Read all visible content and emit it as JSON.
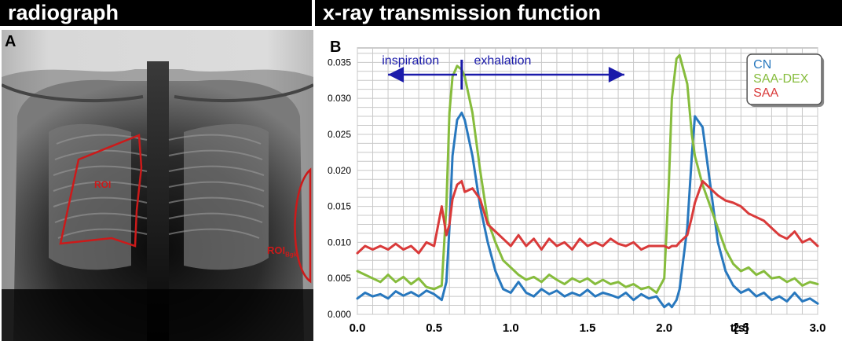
{
  "header": {
    "left_title": "radiograph",
    "right_title": "x-ray transmission function"
  },
  "panels": {
    "a_label": "A",
    "b_label": "B",
    "roi_label": "ROI",
    "roi_bgk_main": "ROI",
    "roi_bgk_sub": "Bgk"
  },
  "colors": {
    "CN": "#2878be",
    "SAA-DEX": "#86bc3c",
    "SAA": "#d93a3a",
    "annotation": "#1a1aaa",
    "roi": "#cc1a1a"
  },
  "annotations": {
    "inspiration": "inspiration",
    "exhalation": "exhalation"
  },
  "chart_data": {
    "type": "line",
    "xlabel": "t[s]",
    "ylabel": "",
    "xlim": [
      0,
      3.0
    ],
    "ylim": [
      0,
      0.037
    ],
    "xticks": [
      "0.0",
      "0.5",
      "1.0",
      "1.5",
      "2.0",
      "2.5",
      "3.0"
    ],
    "yticks": [
      "0.000",
      "0.005",
      "0.010",
      "0.015",
      "0.020",
      "0.025",
      "0.030",
      "0.035"
    ],
    "grid": true,
    "legend_position": "top-right",
    "x": [
      0.0,
      0.05,
      0.1,
      0.15,
      0.2,
      0.25,
      0.3,
      0.35,
      0.4,
      0.45,
      0.5,
      0.55,
      0.58,
      0.6,
      0.62,
      0.65,
      0.68,
      0.7,
      0.75,
      0.8,
      0.85,
      0.9,
      0.95,
      1.0,
      1.05,
      1.1,
      1.15,
      1.2,
      1.25,
      1.3,
      1.35,
      1.4,
      1.45,
      1.5,
      1.55,
      1.6,
      1.65,
      1.7,
      1.75,
      1.8,
      1.85,
      1.9,
      1.95,
      2.0,
      2.03,
      2.05,
      2.08,
      2.1,
      2.15,
      2.18,
      2.2,
      2.25,
      2.3,
      2.35,
      2.4,
      2.45,
      2.5,
      2.55,
      2.6,
      2.65,
      2.7,
      2.75,
      2.8,
      2.85,
      2.9,
      2.95,
      3.0
    ],
    "series": [
      {
        "name": "CN",
        "values": [
          0.0022,
          0.003,
          0.0025,
          0.0028,
          0.0022,
          0.0032,
          0.0026,
          0.0031,
          0.0025,
          0.0033,
          0.0028,
          0.002,
          0.0045,
          0.012,
          0.022,
          0.027,
          0.028,
          0.027,
          0.022,
          0.015,
          0.01,
          0.006,
          0.0035,
          0.003,
          0.0045,
          0.003,
          0.0025,
          0.0035,
          0.0028,
          0.0033,
          0.0025,
          0.003,
          0.0026,
          0.0034,
          0.0025,
          0.003,
          0.0027,
          0.0023,
          0.003,
          0.002,
          0.0028,
          0.0022,
          0.0025,
          0.001,
          0.0015,
          0.001,
          0.002,
          0.0035,
          0.012,
          0.022,
          0.0275,
          0.026,
          0.018,
          0.01,
          0.006,
          0.004,
          0.003,
          0.0035,
          0.0025,
          0.003,
          0.002,
          0.0025,
          0.0018,
          0.003,
          0.0018,
          0.0022,
          0.0015
        ]
      },
      {
        "name": "SAA-DEX",
        "values": [
          0.006,
          0.0055,
          0.005,
          0.0045,
          0.0055,
          0.0045,
          0.0052,
          0.0042,
          0.005,
          0.0038,
          0.0035,
          0.004,
          0.015,
          0.028,
          0.033,
          0.0345,
          0.034,
          0.033,
          0.028,
          0.02,
          0.013,
          0.01,
          0.0075,
          0.0065,
          0.0055,
          0.0048,
          0.0052,
          0.0045,
          0.0055,
          0.0048,
          0.0042,
          0.005,
          0.0045,
          0.005,
          0.0042,
          0.0048,
          0.0042,
          0.0045,
          0.0038,
          0.0042,
          0.0035,
          0.0038,
          0.003,
          0.005,
          0.018,
          0.03,
          0.0355,
          0.036,
          0.032,
          0.025,
          0.022,
          0.018,
          0.015,
          0.012,
          0.009,
          0.007,
          0.006,
          0.0065,
          0.0055,
          0.006,
          0.005,
          0.0052,
          0.0045,
          0.005,
          0.004,
          0.0045,
          0.0042
        ]
      },
      {
        "name": "SAA",
        "values": [
          0.0085,
          0.0095,
          0.009,
          0.0095,
          0.009,
          0.0098,
          0.009,
          0.0095,
          0.0085,
          0.01,
          0.0095,
          0.015,
          0.011,
          0.0125,
          0.016,
          0.018,
          0.0185,
          0.017,
          0.0175,
          0.016,
          0.0125,
          0.0115,
          0.0105,
          0.0095,
          0.011,
          0.0095,
          0.0105,
          0.009,
          0.0105,
          0.0095,
          0.01,
          0.009,
          0.0105,
          0.0095,
          0.01,
          0.0095,
          0.0105,
          0.0098,
          0.0095,
          0.01,
          0.009,
          0.0095,
          0.0095,
          0.0095,
          0.0092,
          0.0095,
          0.0095,
          0.01,
          0.011,
          0.0135,
          0.0155,
          0.0185,
          0.0175,
          0.0165,
          0.0158,
          0.0155,
          0.015,
          0.014,
          0.0135,
          0.013,
          0.012,
          0.011,
          0.0105,
          0.0115,
          0.01,
          0.0105,
          0.0095
        ]
      }
    ]
  }
}
